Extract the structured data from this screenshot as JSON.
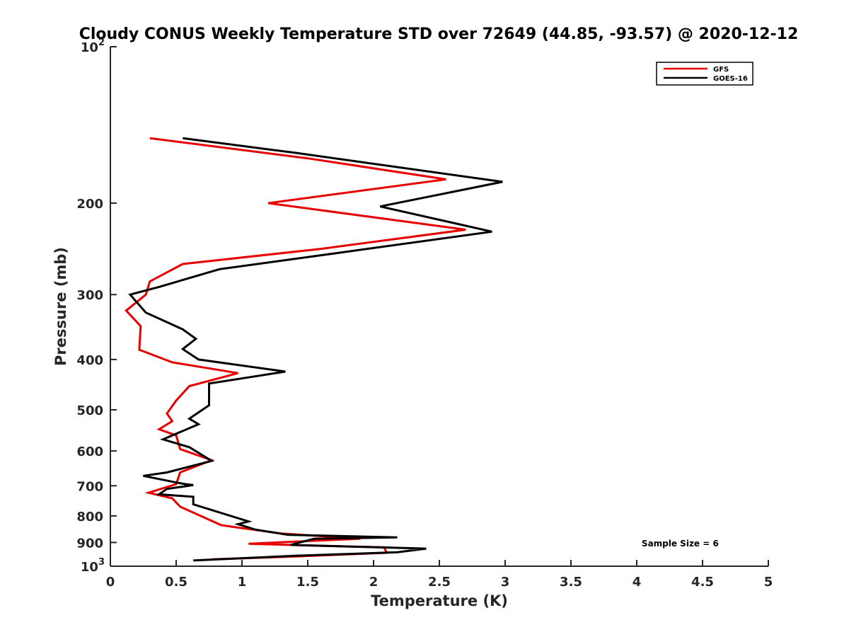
{
  "chart_data": {
    "type": "line",
    "title": "Cloudy CONUS Weekly Temperature STD over 72649 (44.85, -93.57) @ 2020-12-12",
    "xlabel": "Temperature (K)",
    "ylabel": "Pressure (mb)",
    "xlim": [
      0,
      5
    ],
    "ylim": [
      100,
      1000
    ],
    "y_scale": "log",
    "y_reversed": true,
    "grid": false,
    "legend_position": "top-right",
    "x_ticks": [
      {
        "value": 0,
        "label": "0"
      },
      {
        "value": 0.5,
        "label": "0.5"
      },
      {
        "value": 1,
        "label": "1"
      },
      {
        "value": 1.5,
        "label": "1.5"
      },
      {
        "value": 2,
        "label": "2"
      },
      {
        "value": 2.5,
        "label": "2.5"
      },
      {
        "value": 3,
        "label": "3"
      },
      {
        "value": 3.5,
        "label": "3.5"
      },
      {
        "value": 4,
        "label": "4"
      },
      {
        "value": 4.5,
        "label": "4.5"
      },
      {
        "value": 5,
        "label": "5"
      }
    ],
    "y_ticks": [
      {
        "value": 100,
        "base": "10",
        "exp": "2"
      },
      {
        "value": 200,
        "label": "200"
      },
      {
        "value": 300,
        "label": "300"
      },
      {
        "value": 400,
        "label": "400"
      },
      {
        "value": 500,
        "label": "500"
      },
      {
        "value": 600,
        "label": "600"
      },
      {
        "value": 700,
        "label": "700"
      },
      {
        "value": 800,
        "label": "800"
      },
      {
        "value": 900,
        "label": "900"
      },
      {
        "value": 1000,
        "base": "10",
        "exp": "3"
      }
    ],
    "series": [
      {
        "name": "GFS",
        "color": "#e60000",
        "points": [
          [
            0.3,
            150
          ],
          [
            1.5,
            164
          ],
          [
            2.55,
            180
          ],
          [
            1.2,
            200
          ],
          [
            2.7,
            225
          ],
          [
            1.6,
            245
          ],
          [
            0.55,
            262
          ],
          [
            0.3,
            283
          ],
          [
            0.27,
            300
          ],
          [
            0.12,
            322
          ],
          [
            0.23,
            345
          ],
          [
            0.22,
            383
          ],
          [
            0.47,
            405
          ],
          [
            0.97,
            425
          ],
          [
            0.6,
            450
          ],
          [
            0.5,
            480
          ],
          [
            0.43,
            508
          ],
          [
            0.47,
            526
          ],
          [
            0.37,
            545
          ],
          [
            0.5,
            560
          ],
          [
            0.53,
            595
          ],
          [
            0.77,
            625
          ],
          [
            0.53,
            660
          ],
          [
            0.5,
            695
          ],
          [
            0.29,
            722
          ],
          [
            0.47,
            740
          ],
          [
            0.53,
            768
          ],
          [
            0.84,
            833
          ],
          [
            0.93,
            840
          ],
          [
            1.3,
            865
          ],
          [
            1.9,
            885
          ],
          [
            1.05,
            905
          ],
          [
            1.5,
            912
          ],
          [
            2.08,
            920
          ],
          [
            2.1,
            942
          ],
          [
            1.4,
            958
          ],
          [
            0.77,
            970
          ]
        ]
      },
      {
        "name": "GOES-16",
        "color": "#000000",
        "points": [
          [
            0.55,
            150
          ],
          [
            1.4,
            160
          ],
          [
            2.98,
            182
          ],
          [
            2.05,
            203
          ],
          [
            2.9,
            227
          ],
          [
            1.7,
            250
          ],
          [
            0.83,
            268
          ],
          [
            0.37,
            290
          ],
          [
            0.15,
            300
          ],
          [
            0.27,
            325
          ],
          [
            0.55,
            350
          ],
          [
            0.65,
            365
          ],
          [
            0.55,
            382
          ],
          [
            0.67,
            400
          ],
          [
            1.33,
            422
          ],
          [
            0.75,
            445
          ],
          [
            0.75,
            490
          ],
          [
            0.6,
            520
          ],
          [
            0.67,
            533
          ],
          [
            0.4,
            570
          ],
          [
            0.6,
            590
          ],
          [
            0.77,
            627
          ],
          [
            0.43,
            660
          ],
          [
            0.25,
            670
          ],
          [
            0.5,
            690
          ],
          [
            0.57,
            695
          ],
          [
            0.63,
            698
          ],
          [
            0.43,
            710
          ],
          [
            0.37,
            727
          ],
          [
            0.63,
            735
          ],
          [
            0.63,
            760
          ],
          [
            1.05,
            820
          ],
          [
            0.97,
            830
          ],
          [
            1.1,
            850
          ],
          [
            1.35,
            870
          ],
          [
            2.18,
            880
          ],
          [
            1.55,
            885
          ],
          [
            1.37,
            910
          ],
          [
            2.4,
            925
          ],
          [
            2.18,
            940
          ],
          [
            1.4,
            955
          ],
          [
            0.63,
            975
          ]
        ]
      }
    ],
    "annotations": [
      {
        "text": "Sample Size = 6",
        "x": 4.33,
        "y": 905
      }
    ]
  }
}
